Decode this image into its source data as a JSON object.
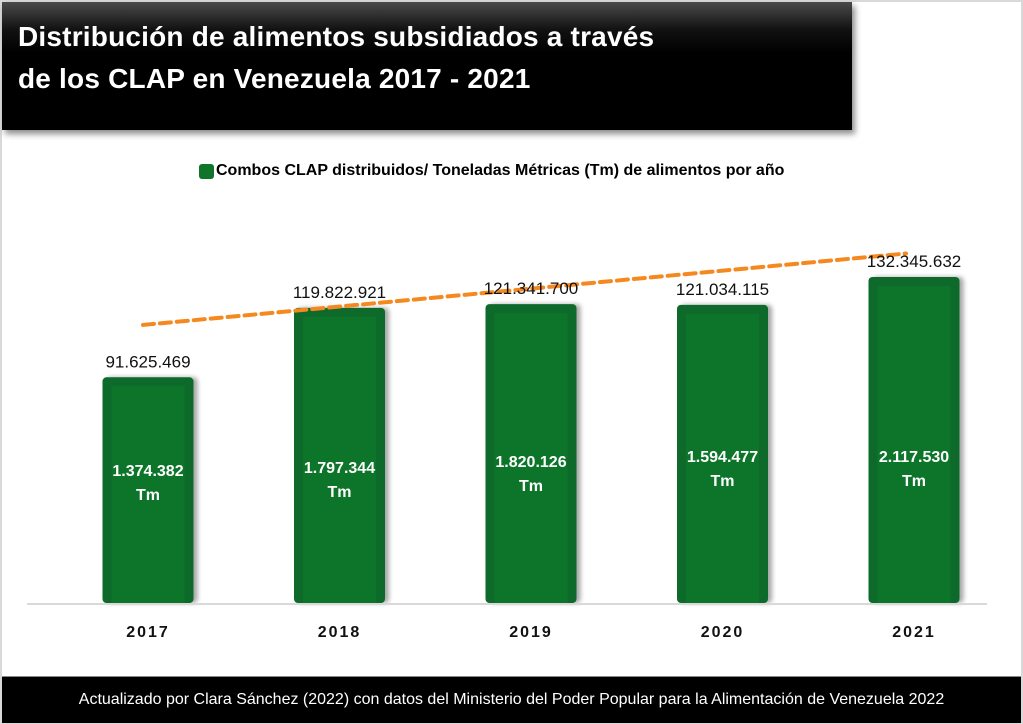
{
  "header": {
    "title_line1": "Distribución de alimentos subsidiados a través",
    "title_line2": "de los CLAP en Venezuela 2017 - 2021"
  },
  "legend": {
    "label": "Combos CLAP distribuidos/ Toneladas Métricas (Tm) de alimentos por año",
    "color": "#10742b"
  },
  "footer": {
    "source": "Actualizado por Clara Sánchez (2022) con datos del Ministerio del Poder Popular para la Alimentación de Venezuela 2022"
  },
  "colors": {
    "bar": "#10742b",
    "bar_edge": "#0d6b2c",
    "trend": "#f5891f"
  },
  "chart_data": {
    "type": "bar",
    "title": "Distribución de alimentos subsidiados a través de los CLAP en Venezuela 2017 - 2021",
    "xlabel": "",
    "ylabel": "",
    "categories": [
      "2017",
      "2018",
      "2019",
      "2020",
      "2021"
    ],
    "series": [
      {
        "name": "Combos CLAP distribuidos",
        "values": [
          91625469,
          119822921,
          121341700,
          121034115,
          132345632
        ],
        "labels": [
          "91.625.469",
          "119.822.921",
          "121.341.700",
          "121.034.115",
          "132.345.632"
        ]
      },
      {
        "name": "Toneladas Métricas (Tm) de alimentos por año",
        "values": [
          1374382,
          1797344,
          1820126,
          1594477,
          2117530
        ],
        "labels": [
          "1.374.382",
          "1.797.344",
          "1.820.126",
          "1.594.477",
          "2.117.530"
        ],
        "unit": "Tm"
      }
    ],
    "trendline": {
      "type": "linear",
      "style": "dashed",
      "series": "Combos CLAP distribuidos"
    },
    "ylim": [
      0,
      135000000
    ],
    "grid": false,
    "y_axis_visible": false,
    "legend_position": "top"
  }
}
